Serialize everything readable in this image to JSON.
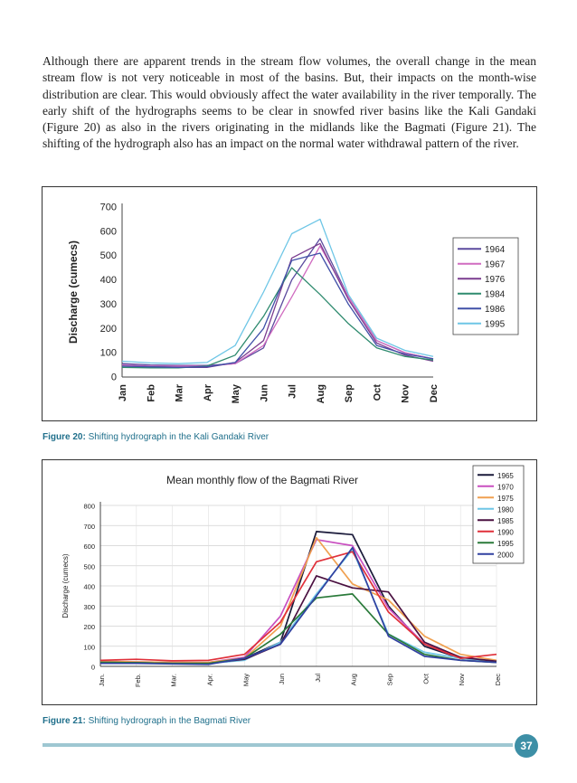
{
  "paragraph": "Although there are apparent trends in the stream flow volumes, the overall change in the mean stream flow is not very noticeable in most of the basins. But, their impacts on the month-wise distribution are clear. This would obviously affect the water availability in the river temporally. The early shift of the hydrographs seems to be clear in snowfed river basins like the Kali Gandaki (Figure 20) as also in the rivers originating in the midlands like the Bagmati (Figure 21). The shifting of the hydrograph also has an impact on the normal water withdrawal pattern of the river.",
  "figure20": {
    "caption_label": "Figure 20:",
    "caption_text": " Shifting hydrograph in the Kali Gandaki River"
  },
  "figure21": {
    "caption_label": "Figure 21:",
    "caption_text": " Shifting hydrograph in the Bagmati River"
  },
  "page_number": "37",
  "chart_data": [
    {
      "type": "line",
      "title": "",
      "ylabel": "Discharge (cumecs)",
      "xlabel": "",
      "ylim": [
        0,
        700
      ],
      "yticks": [
        "0",
        "100",
        "200",
        "300",
        "400",
        "500",
        "600",
        "700"
      ],
      "categories": [
        "Jan",
        "Feb",
        "Mar",
        "Apr",
        "May",
        "Jun",
        "Jul",
        "Aug",
        "Sep",
        "Oct",
        "Nov",
        "Dec"
      ],
      "legend_position": "right",
      "grid": false,
      "series": [
        {
          "name": "1964",
          "color": "#5b4a9e",
          "values": [
            55,
            50,
            48,
            48,
            55,
            120,
            400,
            570,
            330,
            150,
            100,
            75
          ]
        },
        {
          "name": "1967",
          "color": "#d06bc0",
          "values": [
            50,
            45,
            45,
            45,
            55,
            130,
            330,
            540,
            330,
            150,
            100,
            75
          ]
        },
        {
          "name": "1976",
          "color": "#7a3c8f",
          "values": [
            45,
            42,
            40,
            40,
            60,
            150,
            490,
            550,
            320,
            140,
            90,
            65
          ]
        },
        {
          "name": "1984",
          "color": "#2e8a6e",
          "values": [
            40,
            38,
            38,
            45,
            90,
            250,
            450,
            340,
            220,
            120,
            85,
            70
          ]
        },
        {
          "name": "1986",
          "color": "#4050a8",
          "values": [
            45,
            42,
            40,
            42,
            60,
            200,
            480,
            510,
            300,
            130,
            95,
            75
          ]
        },
        {
          "name": "1995",
          "color": "#6ec6e6",
          "values": [
            65,
            58,
            55,
            60,
            130,
            350,
            590,
            650,
            340,
            160,
            110,
            85
          ]
        }
      ]
    },
    {
      "type": "line",
      "title": "Mean monthly flow of the Bagmati River",
      "ylabel": "Discharge (cumecs)",
      "xlabel": "",
      "ylim": [
        0,
        800
      ],
      "yticks": [
        "0",
        "100",
        "200",
        "300",
        "400",
        "500",
        "600",
        "700",
        "800"
      ],
      "categories": [
        "Jan.",
        "Feb.",
        "Mar.",
        "Apr.",
        "May",
        "Jun",
        "Jul",
        "Aug",
        "Sep",
        "Oct",
        "Nov",
        "Dec"
      ],
      "legend_position": "top-right",
      "grid": true,
      "series": [
        {
          "name": "1965",
          "color": "#1a1a3a",
          "values": [
            20,
            18,
            15,
            15,
            40,
            120,
            670,
            655,
            300,
            100,
            40,
            25
          ]
        },
        {
          "name": "1970",
          "color": "#c94fc0",
          "values": [
            25,
            22,
            20,
            20,
            45,
            250,
            630,
            600,
            290,
            110,
            40,
            25
          ]
        },
        {
          "name": "1975",
          "color": "#f0a050",
          "values": [
            25,
            22,
            20,
            20,
            40,
            200,
            640,
            410,
            330,
            150,
            60,
            30
          ]
        },
        {
          "name": "1980",
          "color": "#6ec6e6",
          "values": [
            20,
            18,
            15,
            15,
            30,
            120,
            360,
            580,
            160,
            70,
            40,
            25
          ]
        },
        {
          "name": "1985",
          "color": "#4a1040",
          "values": [
            20,
            18,
            15,
            15,
            35,
            110,
            450,
            390,
            370,
            120,
            45,
            25
          ]
        },
        {
          "name": "1990",
          "color": "#e0303a",
          "values": [
            30,
            35,
            28,
            30,
            60,
            220,
            520,
            570,
            270,
            110,
            40,
            60
          ]
        },
        {
          "name": "1995",
          "color": "#2a7a3a",
          "values": [
            20,
            18,
            15,
            15,
            40,
            160,
            340,
            360,
            160,
            60,
            30,
            20
          ]
        },
        {
          "name": "2000",
          "color": "#3040a0",
          "values": [
            15,
            15,
            12,
            10,
            40,
            110,
            350,
            590,
            150,
            50,
            30,
            20
          ]
        }
      ]
    }
  ]
}
